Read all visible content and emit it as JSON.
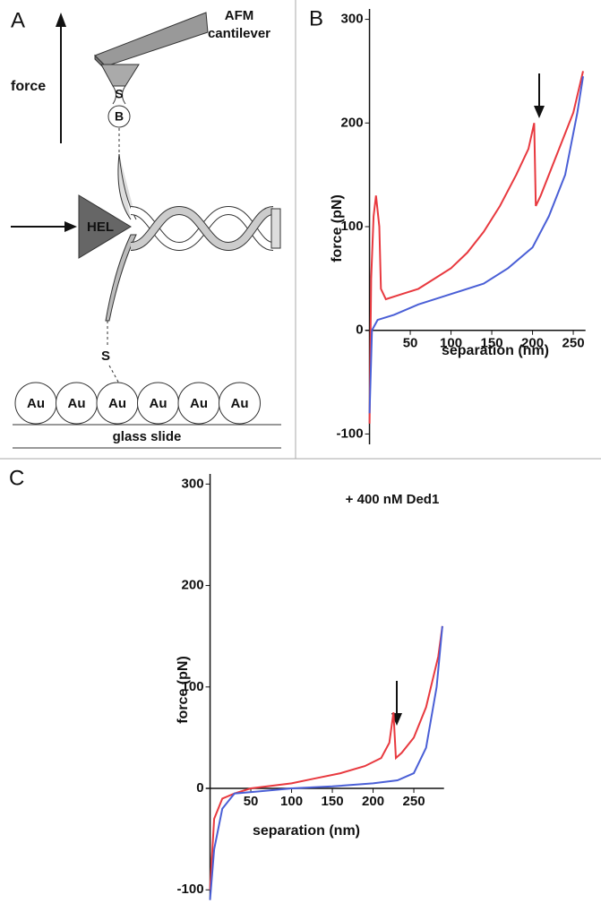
{
  "diagram": {
    "panel_label": "A",
    "cantilever_label": [
      "AFM",
      "cantilever"
    ],
    "force_label": "force",
    "tip_linker": "S",
    "bead": "B",
    "helicase": "HEL",
    "surface_linker": "S",
    "gold": [
      "Au",
      "Au",
      "Au",
      "Au",
      "Au",
      "Au"
    ],
    "slide": "glass slide"
  },
  "chart_data": [
    {
      "type": "line",
      "panel_label": "B",
      "x_label": "separation (nm)",
      "y_label": "force (pN)",
      "xlim": [
        -5,
        265
      ],
      "ylim": [
        -110,
        310
      ],
      "xticks": [
        50,
        100,
        150,
        200,
        250
      ],
      "yticks": [
        -100,
        0,
        100,
        200,
        300
      ],
      "series": [
        {
          "color": "#e8393f",
          "x": [
            0,
            2,
            5,
            8,
            12,
            14,
            20,
            40,
            60,
            80,
            100,
            120,
            140,
            160,
            180,
            195,
            202,
            204,
            210,
            230,
            250,
            262
          ],
          "values": [
            -90,
            50,
            110,
            130,
            100,
            40,
            30,
            35,
            40,
            50,
            60,
            75,
            95,
            120,
            150,
            175,
            200,
            120,
            130,
            170,
            210,
            250
          ]
        },
        {
          "color": "#4a5fd6",
          "x": [
            0,
            3,
            10,
            30,
            60,
            100,
            140,
            170,
            200,
            220,
            240,
            255,
            262
          ],
          "values": [
            -80,
            0,
            10,
            15,
            25,
            35,
            45,
            60,
            80,
            110,
            150,
            210,
            245
          ]
        }
      ]
    },
    {
      "type": "line",
      "panel_label": "C",
      "x_label": "separation (nm)",
      "y_label": "force (pN)",
      "annotation": "+ 400 nM Ded1",
      "xlim": [
        -5,
        287
      ],
      "ylim": [
        -110,
        310
      ],
      "xticks": [
        50,
        100,
        150,
        200,
        250
      ],
      "yticks": [
        -100,
        0,
        100,
        200,
        300
      ],
      "series": [
        {
          "color": "#e8393f",
          "x": [
            0,
            5,
            15,
            30,
            50,
            80,
            100,
            130,
            160,
            190,
            210,
            220,
            225,
            228,
            235,
            250,
            265,
            280,
            285
          ],
          "values": [
            -100,
            -30,
            -10,
            -5,
            0,
            3,
            5,
            10,
            15,
            22,
            30,
            45,
            75,
            30,
            35,
            50,
            80,
            130,
            160
          ]
        },
        {
          "color": "#4a5fd6",
          "x": [
            0,
            5,
            15,
            30,
            60,
            100,
            150,
            200,
            230,
            250,
            265,
            278,
            285
          ],
          "values": [
            -110,
            -60,
            -20,
            -5,
            -3,
            0,
            2,
            5,
            8,
            15,
            40,
            100,
            160
          ]
        }
      ]
    }
  ]
}
